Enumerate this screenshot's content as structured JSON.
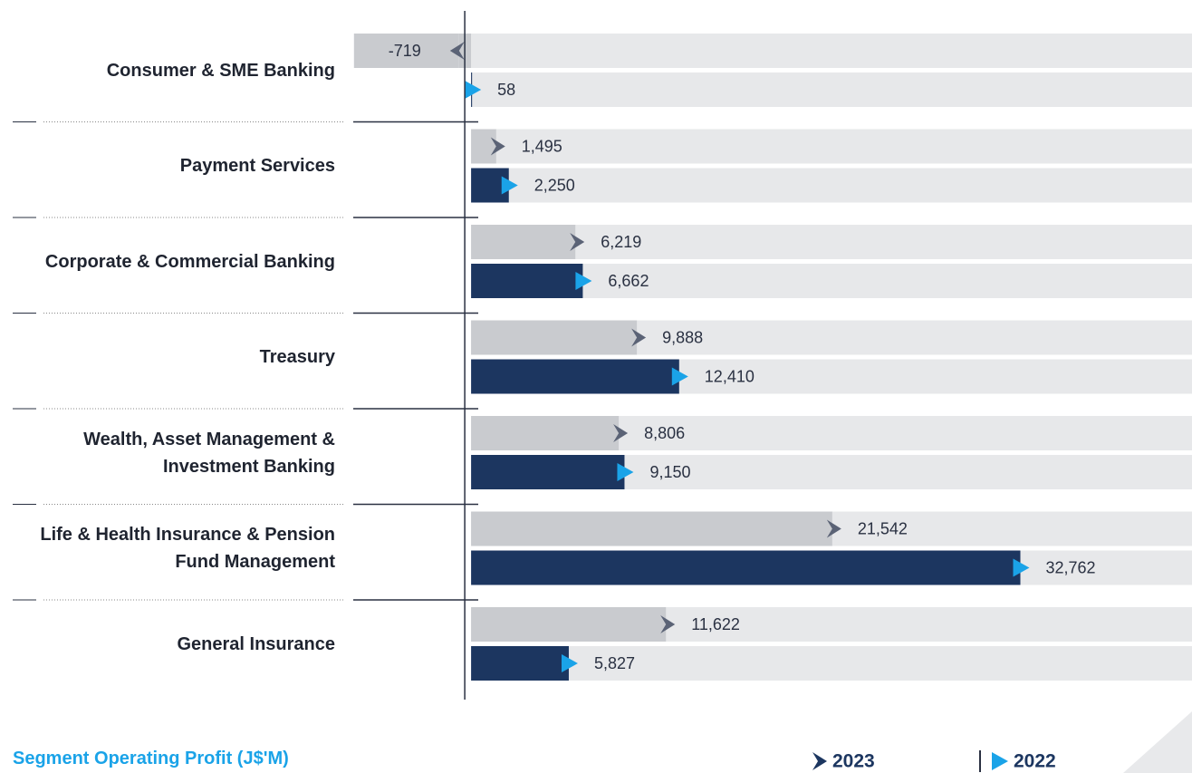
{
  "chart_data": {
    "type": "bar",
    "orientation": "horizontal",
    "title": "Segment Operating Profit (J$'M)",
    "categories": [
      "Consumer & SME Banking",
      "Payment Services",
      "Corporate & Commercial Banking",
      "Treasury",
      "Wealth, Asset Management & Investment Banking",
      "Life & Health Insurance & Pension Fund Management",
      "General Insurance"
    ],
    "series": [
      {
        "name": "2023",
        "color": "#c9cbcf",
        "marker_color": "#5b6376",
        "values": [
          -719,
          1495,
          6219,
          9888,
          8806,
          21542,
          11622
        ],
        "value_labels": [
          "-719",
          "1,495",
          "6,219",
          "9,888",
          "8,806",
          "21,542",
          "11,622"
        ]
      },
      {
        "name": "2022",
        "color": "#1c3660",
        "marker_color": "#1aa3e8",
        "values": [
          58,
          2250,
          6662,
          12410,
          9150,
          32762,
          5827
        ],
        "value_labels": [
          "58",
          "2,250",
          "6,662",
          "12,410",
          "9,150",
          "32,762",
          "5,827"
        ]
      }
    ],
    "xlim": [
      -28100,
      43000
    ],
    "legend": "bottom-right"
  }
}
